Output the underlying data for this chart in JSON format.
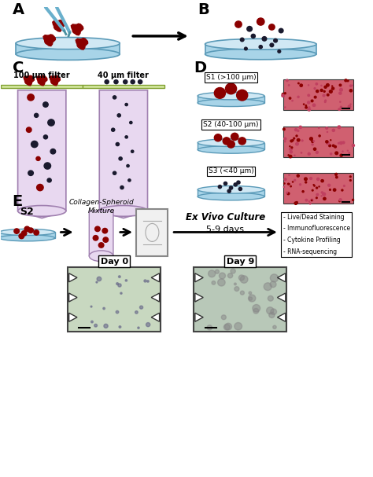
{
  "panel_labels": [
    "A",
    "B",
    "C",
    "D",
    "E"
  ],
  "panel_label_fontsize": 14,
  "panel_label_fontweight": "bold",
  "background_color": "#ffffff",
  "dish_color": "#a8d4e8",
  "dish_edge_color": "#5a9ab8",
  "tube_color": "#e8d8f0",
  "tube_edge_color": "#a080b0",
  "filter_color": "#d4e8a0",
  "filter_edge_color": "#80a030",
  "spheroid_large_color": "#8b0000",
  "spheroid_small_color": "#1a1a2e",
  "spheroid_medium_color": "#6b0000",
  "arrow_color": "#000000",
  "label_C_left": "100 μm filter",
  "label_C_right": "40 μm filter",
  "label_D_S1": "S1 (>100 μm)",
  "label_D_S2": "S2 (40-100 μm)",
  "label_D_S3": "S3 (<40 μm)",
  "label_E_collagen": "Collagen-Spheroid\nMixture",
  "label_E_culture": "Ex Vivo Culture",
  "label_E_days": "5-9 days",
  "label_E_S2": "S2",
  "label_E_outcomes": [
    "Live/Dead Staining",
    "Immunofluorescence",
    "Cytokine Profiling",
    "RNA-sequencing"
  ],
  "label_day0": "Day 0",
  "label_day9": "Day 9",
  "microfluidic_color": "#f0f0f0",
  "microfluidic_edge": "#888888",
  "photo_day0_color": "#c8d8c0",
  "photo_day9_color": "#b8c8b8"
}
